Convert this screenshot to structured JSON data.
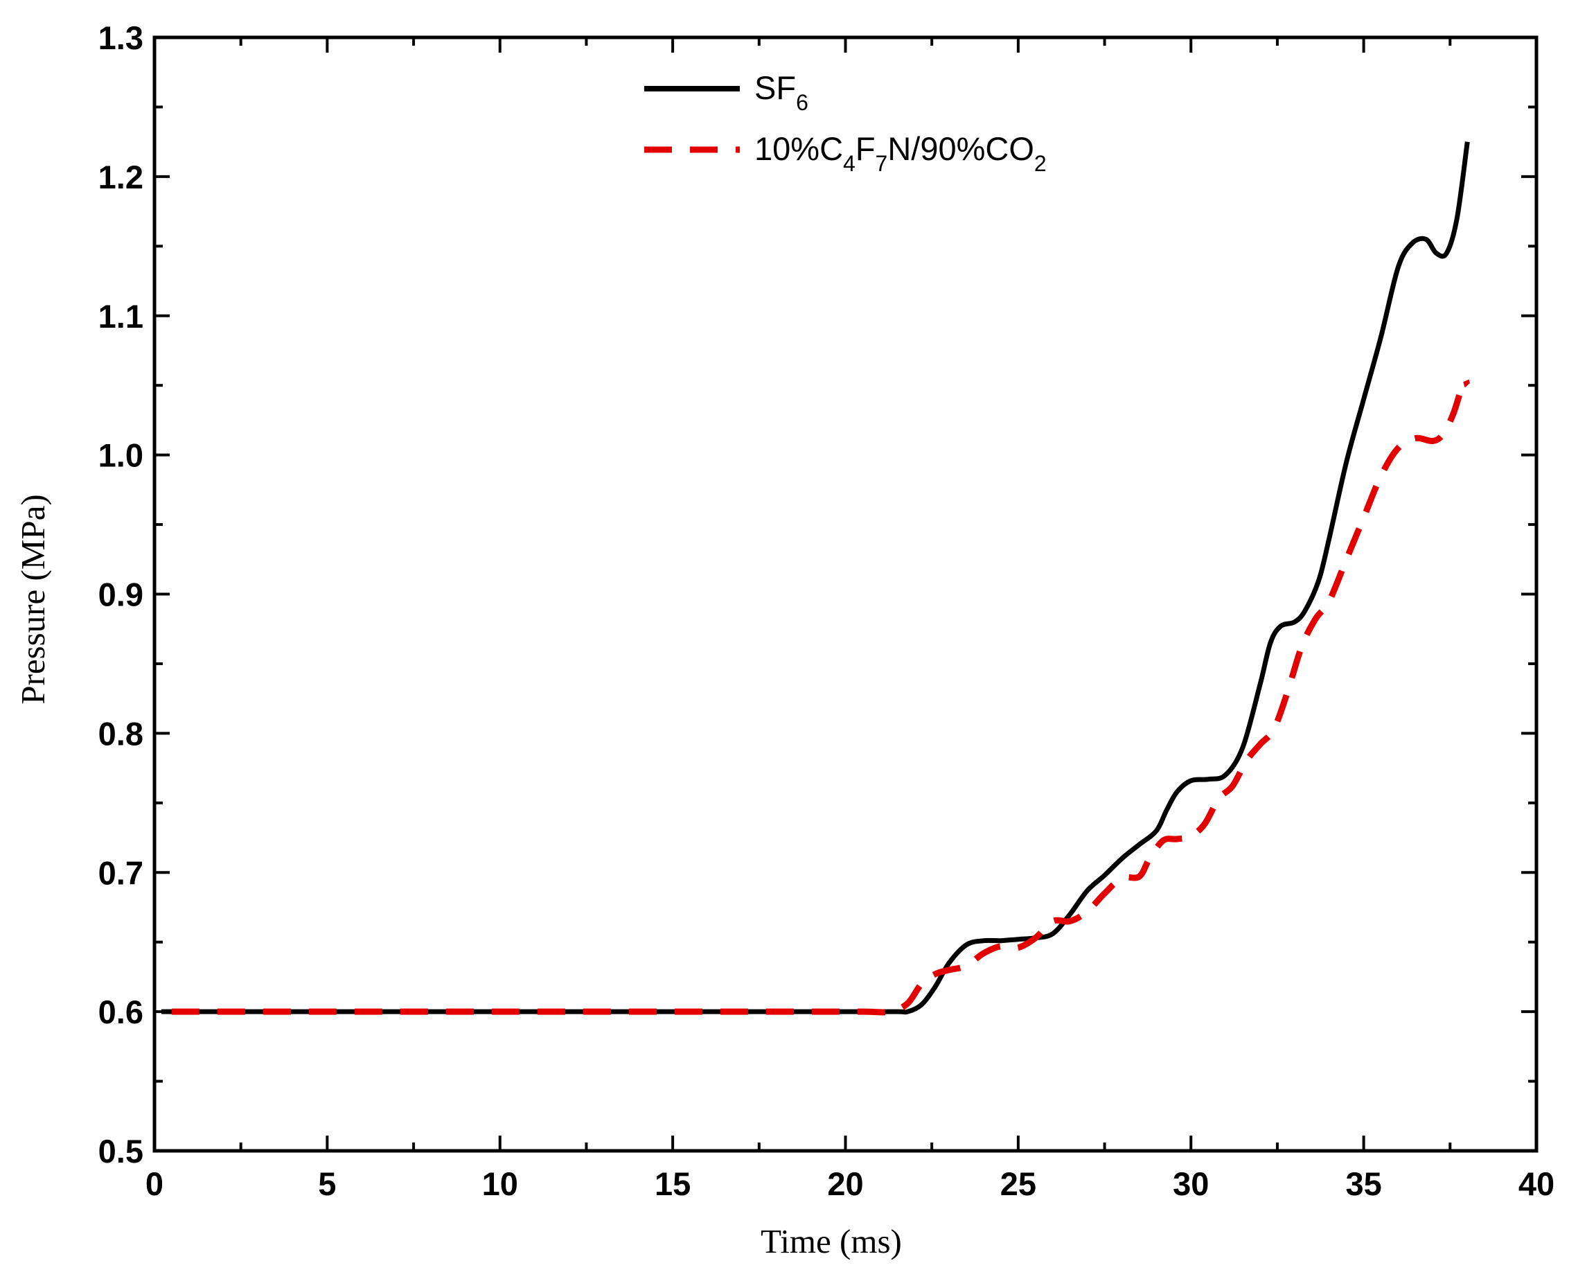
{
  "chart_data": {
    "type": "line",
    "title": "",
    "xlabel": "Time (ms)",
    "ylabel": "Pressure (MPa)",
    "xlim": [
      0,
      40
    ],
    "ylim": [
      0.5,
      1.3
    ],
    "x_ticks": [
      0,
      5,
      10,
      15,
      20,
      25,
      30,
      35,
      40
    ],
    "x_tick_labels": [
      "0",
      "5",
      "10",
      "15",
      "20",
      "25",
      "30",
      "35",
      "40"
    ],
    "y_ticks": [
      0.5,
      0.6,
      0.7,
      0.8,
      0.9,
      1.0,
      1.1,
      1.2,
      1.3
    ],
    "y_tick_labels": [
      "0.5",
      "0.6",
      "0.7",
      "0.8",
      "0.9",
      "1.0",
      "1.1",
      "1.2",
      "1.3"
    ],
    "grid": false,
    "legend_position": "top-center",
    "series": [
      {
        "name": "SF6",
        "legend": {
          "main": "SF",
          "sub1": "6",
          "tail1": "",
          "sub2": "",
          "tail2": "",
          "sub3": "",
          "tail3": ""
        },
        "color": "#000000",
        "style": "solid",
        "x": [
          0.2,
          5,
          10,
          15,
          20,
          21.5,
          21.8,
          22.2,
          22.6,
          23.0,
          23.5,
          24.0,
          24.5,
          25.0,
          25.5,
          26.0,
          26.5,
          27.0,
          27.5,
          28.0,
          28.5,
          29.0,
          29.3,
          29.6,
          30.0,
          30.5,
          31.0,
          31.5,
          32.0,
          32.3,
          32.6,
          33.0,
          33.3,
          33.7,
          34.0,
          34.5,
          35.0,
          35.5,
          36.0,
          36.4,
          36.8,
          37.1,
          37.4,
          37.7,
          38.0
        ],
        "y": [
          0.6,
          0.6,
          0.6,
          0.6,
          0.6,
          0.6,
          0.6,
          0.605,
          0.618,
          0.635,
          0.648,
          0.651,
          0.651,
          0.652,
          0.653,
          0.656,
          0.67,
          0.687,
          0.698,
          0.71,
          0.72,
          0.73,
          0.745,
          0.758,
          0.766,
          0.767,
          0.77,
          0.79,
          0.835,
          0.865,
          0.877,
          0.88,
          0.888,
          0.91,
          0.94,
          0.995,
          1.04,
          1.085,
          1.135,
          1.152,
          1.155,
          1.145,
          1.145,
          1.17,
          1.225
        ]
      },
      {
        "name": "10%C4F7N/90%CO2",
        "legend": {
          "main": "10%C",
          "sub1": "4",
          "tail1": "F",
          "sub2": "7",
          "tail2": "N/90%CO",
          "sub3": "2",
          "tail3": ""
        },
        "color": "#e30000",
        "style": "dashed",
        "x": [
          0.5,
          5,
          10,
          15,
          19,
          20.5,
          21.3,
          21.8,
          22.2,
          22.6,
          23.0,
          23.5,
          24.0,
          24.5,
          25.0,
          25.5,
          26.0,
          26.5,
          27.0,
          27.5,
          28.0,
          28.5,
          28.8,
          29.2,
          29.6,
          30.0,
          30.4,
          30.8,
          31.2,
          31.6,
          32.0,
          32.4,
          32.8,
          33.2,
          33.6,
          34.0,
          34.5,
          35.0,
          35.5,
          36.0,
          36.5,
          37.0,
          37.3,
          37.6,
          37.9,
          38.0
        ],
        "y": [
          0.6,
          0.6,
          0.6,
          0.6,
          0.6,
          0.6,
          0.6,
          0.606,
          0.62,
          0.627,
          0.63,
          0.633,
          0.642,
          0.647,
          0.646,
          0.653,
          0.665,
          0.665,
          0.672,
          0.685,
          0.696,
          0.697,
          0.71,
          0.723,
          0.724,
          0.726,
          0.735,
          0.753,
          0.762,
          0.78,
          0.792,
          0.803,
          0.83,
          0.862,
          0.882,
          0.895,
          0.925,
          0.955,
          0.985,
          1.005,
          1.012,
          1.01,
          1.015,
          1.03,
          1.053,
          1.05
        ]
      }
    ]
  }
}
